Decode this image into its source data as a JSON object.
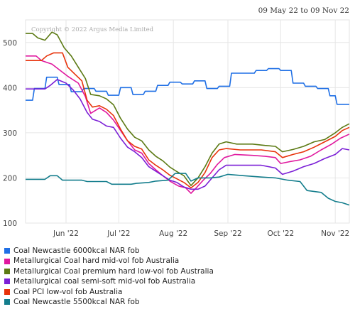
{
  "date_range": "09 May 22 to 09 Nov 22",
  "copyright": "Copyright © 2022 Argus Media Limited",
  "chart_data": {
    "type": "line",
    "x_tick_labels": [
      "Jun '22",
      "Jul '22",
      "Aug '22",
      "Sep '22",
      "Oct '22",
      "Nov '22"
    ],
    "x_tick_dates": [
      "2022-06-01",
      "2022-07-01",
      "2022-08-01",
      "2022-09-01",
      "2022-10-01",
      "2022-11-01"
    ],
    "x_range": [
      "2022-05-09",
      "2022-11-09"
    ],
    "y_range": [
      100,
      550
    ],
    "y_ticks": [
      100,
      200,
      300,
      400,
      500
    ],
    "grid": true,
    "legend_position": "bottom",
    "series": [
      {
        "name": "Coal Newcastle 6000kcal NAR fob",
        "color": "#1f6fe5",
        "points": [
          [
            "2022-05-09",
            372
          ],
          [
            "2022-05-13",
            372
          ],
          [
            "2022-05-14",
            398
          ],
          [
            "2022-05-20",
            398
          ],
          [
            "2022-05-21",
            423
          ],
          [
            "2022-05-27",
            423
          ],
          [
            "2022-05-28",
            407
          ],
          [
            "2022-06-03",
            407
          ],
          [
            "2022-06-04",
            391
          ],
          [
            "2022-06-10",
            391
          ],
          [
            "2022-06-11",
            398
          ],
          [
            "2022-06-17",
            398
          ],
          [
            "2022-06-18",
            392
          ],
          [
            "2022-06-24",
            392
          ],
          [
            "2022-06-25",
            383
          ],
          [
            "2022-07-01",
            383
          ],
          [
            "2022-07-02",
            400
          ],
          [
            "2022-07-08",
            400
          ],
          [
            "2022-07-09",
            385
          ],
          [
            "2022-07-15",
            385
          ],
          [
            "2022-07-16",
            392
          ],
          [
            "2022-07-22",
            392
          ],
          [
            "2022-07-23",
            405
          ],
          [
            "2022-07-29",
            405
          ],
          [
            "2022-07-30",
            412
          ],
          [
            "2022-08-05",
            412
          ],
          [
            "2022-08-06",
            408
          ],
          [
            "2022-08-12",
            408
          ],
          [
            "2022-08-13",
            415
          ],
          [
            "2022-08-19",
            415
          ],
          [
            "2022-08-20",
            398
          ],
          [
            "2022-08-26",
            398
          ],
          [
            "2022-08-27",
            403
          ],
          [
            "2022-09-02",
            403
          ],
          [
            "2022-09-03",
            432
          ],
          [
            "2022-09-09",
            432
          ],
          [
            "2022-09-10",
            432
          ],
          [
            "2022-09-16",
            432
          ],
          [
            "2022-09-17",
            438
          ],
          [
            "2022-09-23",
            438
          ],
          [
            "2022-09-24",
            442
          ],
          [
            "2022-09-30",
            442
          ],
          [
            "2022-10-01",
            438
          ],
          [
            "2022-10-07",
            438
          ],
          [
            "2022-10-08",
            410
          ],
          [
            "2022-10-14",
            410
          ],
          [
            "2022-10-15",
            403
          ],
          [
            "2022-10-21",
            403
          ],
          [
            "2022-10-22",
            398
          ],
          [
            "2022-10-28",
            398
          ],
          [
            "2022-10-29",
            382
          ],
          [
            "2022-11-01",
            382
          ],
          [
            "2022-11-02",
            363
          ],
          [
            "2022-11-09",
            363
          ]
        ]
      },
      {
        "name": "Metallurgical Coal hard mid-vol fob Australia",
        "color": "#e0189e",
        "points": [
          [
            "2022-05-09",
            470
          ],
          [
            "2022-05-15",
            470
          ],
          [
            "2022-05-18",
            460
          ],
          [
            "2022-05-24",
            452
          ],
          [
            "2022-05-28",
            440
          ],
          [
            "2022-06-02",
            425
          ],
          [
            "2022-06-08",
            410
          ],
          [
            "2022-06-12",
            380
          ],
          [
            "2022-06-15",
            343
          ],
          [
            "2022-06-20",
            355
          ],
          [
            "2022-06-24",
            345
          ],
          [
            "2022-06-28",
            328
          ],
          [
            "2022-07-02",
            305
          ],
          [
            "2022-07-06",
            282
          ],
          [
            "2022-07-10",
            262
          ],
          [
            "2022-07-14",
            255
          ],
          [
            "2022-07-18",
            232
          ],
          [
            "2022-07-22",
            218
          ],
          [
            "2022-07-26",
            205
          ],
          [
            "2022-07-30",
            193
          ],
          [
            "2022-08-04",
            182
          ],
          [
            "2022-08-08",
            178
          ],
          [
            "2022-08-11",
            166
          ],
          [
            "2022-08-14",
            178
          ],
          [
            "2022-08-18",
            195
          ],
          [
            "2022-08-22",
            210
          ],
          [
            "2022-08-26",
            230
          ],
          [
            "2022-08-30",
            245
          ],
          [
            "2022-09-05",
            252
          ],
          [
            "2022-09-15",
            250
          ],
          [
            "2022-09-22",
            248
          ],
          [
            "2022-09-28",
            245
          ],
          [
            "2022-10-01",
            232
          ],
          [
            "2022-10-06",
            236
          ],
          [
            "2022-10-12",
            240
          ],
          [
            "2022-10-18",
            248
          ],
          [
            "2022-10-24",
            262
          ],
          [
            "2022-10-30",
            275
          ],
          [
            "2022-11-04",
            288
          ],
          [
            "2022-11-09",
            297
          ]
        ]
      },
      {
        "name": "Metallurgical Coal premium hard low-vol fob Australia",
        "color": "#5c7a14",
        "points": [
          [
            "2022-05-09",
            520
          ],
          [
            "2022-05-13",
            520
          ],
          [
            "2022-05-16",
            510
          ],
          [
            "2022-05-20",
            505
          ],
          [
            "2022-05-24",
            523
          ],
          [
            "2022-05-27",
            517
          ],
          [
            "2022-05-31",
            488
          ],
          [
            "2022-06-04",
            470
          ],
          [
            "2022-06-08",
            445
          ],
          [
            "2022-06-12",
            420
          ],
          [
            "2022-06-15",
            385
          ],
          [
            "2022-06-20",
            382
          ],
          [
            "2022-06-24",
            375
          ],
          [
            "2022-06-28",
            362
          ],
          [
            "2022-07-02",
            332
          ],
          [
            "2022-07-06",
            308
          ],
          [
            "2022-07-10",
            290
          ],
          [
            "2022-07-14",
            282
          ],
          [
            "2022-07-18",
            262
          ],
          [
            "2022-07-22",
            248
          ],
          [
            "2022-07-26",
            238
          ],
          [
            "2022-07-30",
            224
          ],
          [
            "2022-08-03",
            214
          ],
          [
            "2022-08-07",
            205
          ],
          [
            "2022-08-11",
            183
          ],
          [
            "2022-08-15",
            200
          ],
          [
            "2022-08-19",
            225
          ],
          [
            "2022-08-23",
            255
          ],
          [
            "2022-08-27",
            275
          ],
          [
            "2022-08-31",
            280
          ],
          [
            "2022-09-06",
            275
          ],
          [
            "2022-09-15",
            275
          ],
          [
            "2022-09-22",
            272
          ],
          [
            "2022-09-28",
            270
          ],
          [
            "2022-10-02",
            258
          ],
          [
            "2022-10-08",
            263
          ],
          [
            "2022-10-14",
            270
          ],
          [
            "2022-10-20",
            280
          ],
          [
            "2022-10-26",
            285
          ],
          [
            "2022-11-01",
            300
          ],
          [
            "2022-11-05",
            312
          ],
          [
            "2022-11-09",
            320
          ]
        ]
      },
      {
        "name": "Metallurgical coal semi-soft mid-vol fob Australia",
        "color": "#7b1fd6",
        "points": [
          [
            "2022-05-09",
            397
          ],
          [
            "2022-05-20",
            397
          ],
          [
            "2022-05-23",
            405
          ],
          [
            "2022-05-27",
            418
          ],
          [
            "2022-06-01",
            410
          ],
          [
            "2022-06-05",
            395
          ],
          [
            "2022-06-09",
            375
          ],
          [
            "2022-06-13",
            345
          ],
          [
            "2022-06-16",
            330
          ],
          [
            "2022-06-20",
            325
          ],
          [
            "2022-06-24",
            315
          ],
          [
            "2022-06-28",
            312
          ],
          [
            "2022-07-02",
            288
          ],
          [
            "2022-07-06",
            268
          ],
          [
            "2022-07-10",
            258
          ],
          [
            "2022-07-14",
            245
          ],
          [
            "2022-07-18",
            225
          ],
          [
            "2022-07-22",
            215
          ],
          [
            "2022-07-26",
            205
          ],
          [
            "2022-07-30",
            195
          ],
          [
            "2022-08-03",
            190
          ],
          [
            "2022-08-07",
            180
          ],
          [
            "2022-08-11",
            175
          ],
          [
            "2022-08-15",
            175
          ],
          [
            "2022-08-19",
            182
          ],
          [
            "2022-08-23",
            200
          ],
          [
            "2022-08-27",
            218
          ],
          [
            "2022-08-31",
            228
          ],
          [
            "2022-09-08",
            228
          ],
          [
            "2022-09-20",
            228
          ],
          [
            "2022-09-28",
            222
          ],
          [
            "2022-10-02",
            208
          ],
          [
            "2022-10-08",
            215
          ],
          [
            "2022-10-14",
            225
          ],
          [
            "2022-10-20",
            232
          ],
          [
            "2022-10-26",
            243
          ],
          [
            "2022-11-01",
            252
          ],
          [
            "2022-11-05",
            265
          ],
          [
            "2022-11-09",
            262
          ]
        ]
      },
      {
        "name": "Coal PCI low-vol fob Australia",
        "color": "#e8320a",
        "points": [
          [
            "2022-05-09",
            460
          ],
          [
            "2022-05-18",
            460
          ],
          [
            "2022-05-21",
            470
          ],
          [
            "2022-05-25",
            477
          ],
          [
            "2022-05-30",
            477
          ],
          [
            "2022-06-02",
            445
          ],
          [
            "2022-06-06",
            430
          ],
          [
            "2022-06-10",
            415
          ],
          [
            "2022-06-13",
            372
          ],
          [
            "2022-06-16",
            357
          ],
          [
            "2022-06-20",
            360
          ],
          [
            "2022-06-24",
            352
          ],
          [
            "2022-06-28",
            338
          ],
          [
            "2022-07-02",
            308
          ],
          [
            "2022-07-06",
            282
          ],
          [
            "2022-07-10",
            270
          ],
          [
            "2022-07-14",
            264
          ],
          [
            "2022-07-18",
            240
          ],
          [
            "2022-07-22",
            228
          ],
          [
            "2022-07-26",
            218
          ],
          [
            "2022-07-30",
            206
          ],
          [
            "2022-08-03",
            198
          ],
          [
            "2022-08-07",
            190
          ],
          [
            "2022-08-11",
            178
          ],
          [
            "2022-08-15",
            190
          ],
          [
            "2022-08-19",
            212
          ],
          [
            "2022-08-23",
            245
          ],
          [
            "2022-08-27",
            262
          ],
          [
            "2022-08-31",
            265
          ],
          [
            "2022-09-08",
            262
          ],
          [
            "2022-09-20",
            262
          ],
          [
            "2022-09-28",
            258
          ],
          [
            "2022-10-02",
            245
          ],
          [
            "2022-10-08",
            252
          ],
          [
            "2022-10-14",
            258
          ],
          [
            "2022-10-20",
            268
          ],
          [
            "2022-10-26",
            280
          ],
          [
            "2022-11-01",
            292
          ],
          [
            "2022-11-05",
            305
          ],
          [
            "2022-11-09",
            312
          ]
        ]
      },
      {
        "name": "Coal Newcastle 5500kcal NAR fob",
        "color": "#137d8c",
        "points": [
          [
            "2022-05-09",
            197
          ],
          [
            "2022-05-20",
            197
          ],
          [
            "2022-05-23",
            205
          ],
          [
            "2022-05-27",
            205
          ],
          [
            "2022-05-30",
            195
          ],
          [
            "2022-06-10",
            195
          ],
          [
            "2022-06-13",
            192
          ],
          [
            "2022-06-24",
            192
          ],
          [
            "2022-06-27",
            186
          ],
          [
            "2022-07-08",
            186
          ],
          [
            "2022-07-11",
            188
          ],
          [
            "2022-07-18",
            190
          ],
          [
            "2022-07-22",
            193
          ],
          [
            "2022-07-29",
            195
          ],
          [
            "2022-08-02",
            210
          ],
          [
            "2022-08-08",
            210
          ],
          [
            "2022-08-11",
            193
          ],
          [
            "2022-08-15",
            200
          ],
          [
            "2022-08-22",
            200
          ],
          [
            "2022-08-27",
            202
          ],
          [
            "2022-09-01",
            208
          ],
          [
            "2022-09-10",
            205
          ],
          [
            "2022-09-20",
            202
          ],
          [
            "2022-09-28",
            200
          ],
          [
            "2022-10-05",
            195
          ],
          [
            "2022-10-12",
            192
          ],
          [
            "2022-10-16",
            172
          ],
          [
            "2022-10-24",
            168
          ],
          [
            "2022-10-28",
            155
          ],
          [
            "2022-11-01",
            148
          ],
          [
            "2022-11-05",
            145
          ],
          [
            "2022-11-09",
            140
          ]
        ]
      }
    ]
  }
}
